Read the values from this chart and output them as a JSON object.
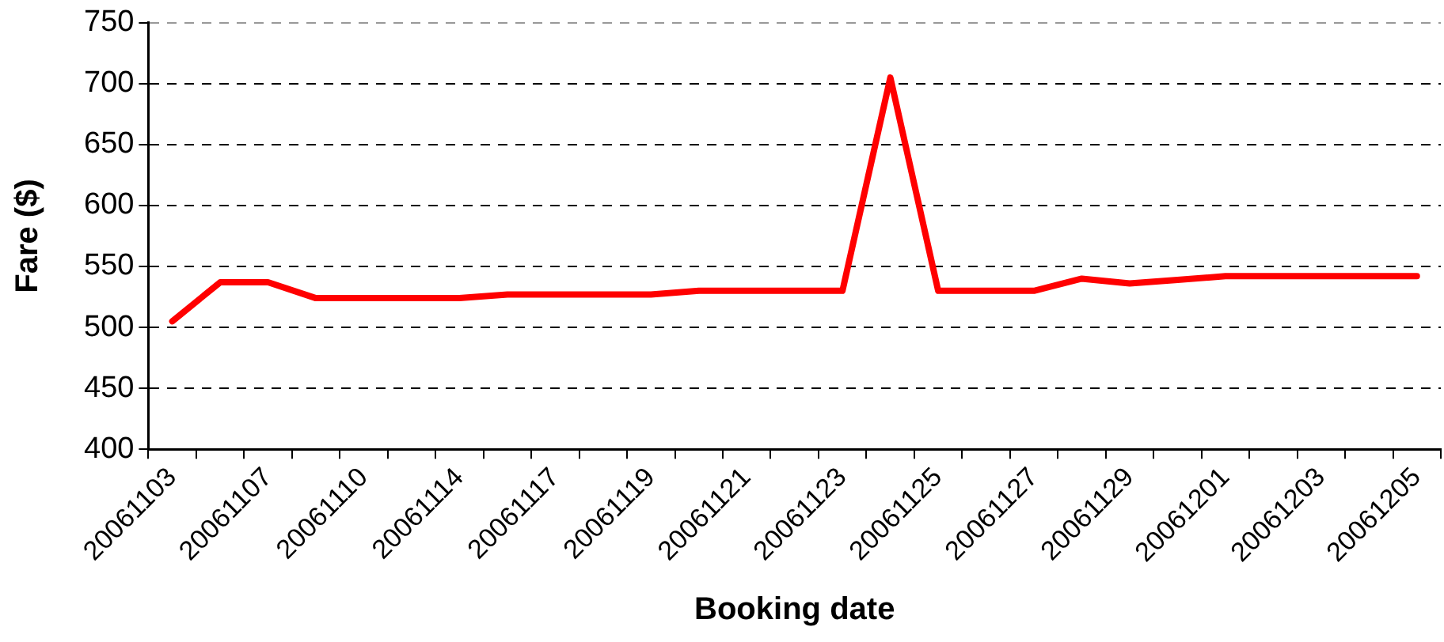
{
  "chart_data": {
    "type": "line",
    "xlabel": "Booking date",
    "ylabel": "Fare ($)",
    "categories": [
      "20061103",
      null,
      "20061107",
      null,
      "20061110",
      null,
      "20061114",
      null,
      "20061117",
      null,
      "20061119",
      null,
      "20061121",
      null,
      "20061123",
      null,
      "20061125",
      null,
      "20061127",
      null,
      "20061129",
      null,
      "20061201",
      null,
      "20061203",
      null,
      "20061205"
    ],
    "series": [
      {
        "color": "#ff0000",
        "values": [
          505,
          537,
          537,
          524,
          524,
          524,
          524,
          527,
          527,
          527,
          527,
          530,
          530,
          530,
          530,
          705,
          530,
          530,
          530,
          540,
          536,
          539,
          542,
          542,
          542,
          542,
          542
        ]
      }
    ],
    "ylim": [
      400,
      750
    ],
    "yticks": [
      400,
      450,
      500,
      550,
      600,
      650,
      700,
      750
    ],
    "grid": "y",
    "legend": false,
    "marker": "none",
    "line_style": "solid"
  }
}
